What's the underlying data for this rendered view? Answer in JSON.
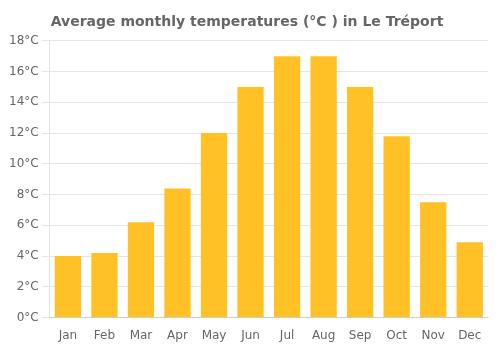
{
  "chart_data": {
    "type": "bar",
    "title": "Average monthly temperatures (°C ) in Le Tréport",
    "categories": [
      "Jan",
      "Feb",
      "Mar",
      "Apr",
      "May",
      "Jun",
      "Jul",
      "Aug",
      "Sep",
      "Oct",
      "Nov",
      "Dec"
    ],
    "values": [
      4.0,
      4.2,
      6.2,
      8.4,
      12.0,
      15.0,
      17.0,
      17.0,
      15.0,
      11.8,
      7.5,
      4.9
    ],
    "color": "#FFC125",
    "ylim": [
      0,
      18
    ],
    "yticks": [
      {
        "value": 0,
        "label": "0°C"
      },
      {
        "value": 2,
        "label": "2°C"
      },
      {
        "value": 4,
        "label": "4°C"
      },
      {
        "value": 6,
        "label": "6°C"
      },
      {
        "value": 8,
        "label": "8°C"
      },
      {
        "value": 10,
        "label": "10°C"
      },
      {
        "value": 12,
        "label": "12°C"
      },
      {
        "value": 14,
        "label": "14°C"
      },
      {
        "value": 16,
        "label": "16°C"
      },
      {
        "value": 18,
        "label": "18°C"
      }
    ],
    "grid": true
  }
}
